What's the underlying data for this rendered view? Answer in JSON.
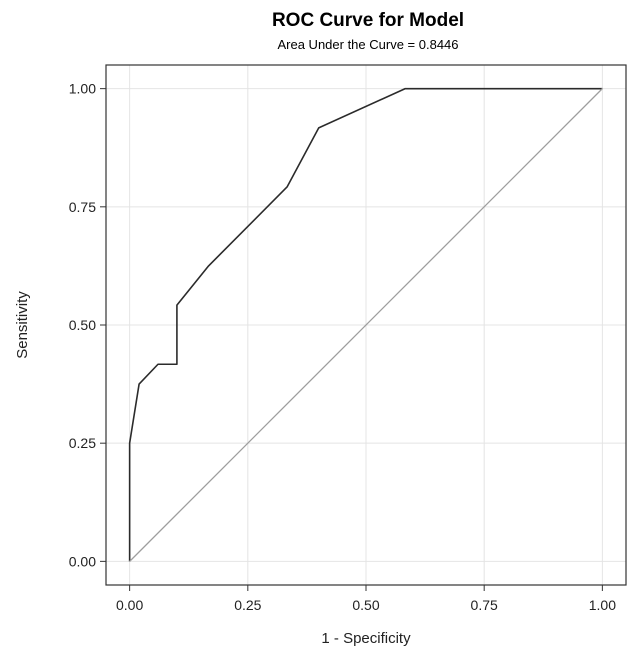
{
  "chart_data": {
    "type": "line",
    "title": "ROC Curve for Model",
    "subtitle": "Area Under the Curve = 0.8446",
    "xlabel": "1 - Specificity",
    "ylabel": "Sensitivity",
    "xlim": [
      -0.05,
      1.05
    ],
    "ylim": [
      -0.05,
      1.05
    ],
    "x_ticks": [
      "0.00",
      "0.25",
      "0.50",
      "0.75",
      "1.00"
    ],
    "y_ticks": [
      "0.00",
      "0.25",
      "0.50",
      "0.75",
      "1.00"
    ],
    "grid": true,
    "series": [
      {
        "x": [
          0.0,
          0.0,
          0.02,
          0.06,
          0.1,
          0.1,
          0.167,
          0.333,
          0.4,
          0.583,
          1.0
        ],
        "y": [
          0.0,
          0.25,
          0.375,
          0.417,
          0.417,
          0.542,
          0.625,
          0.792,
          0.917,
          1.0,
          1.0
        ],
        "color": "#2b2b2b"
      },
      {
        "x": [
          0.0,
          1.0
        ],
        "y": [
          0.0,
          1.0
        ],
        "color": "#9e9e9e",
        "style": "reference-diagonal"
      }
    ]
  }
}
